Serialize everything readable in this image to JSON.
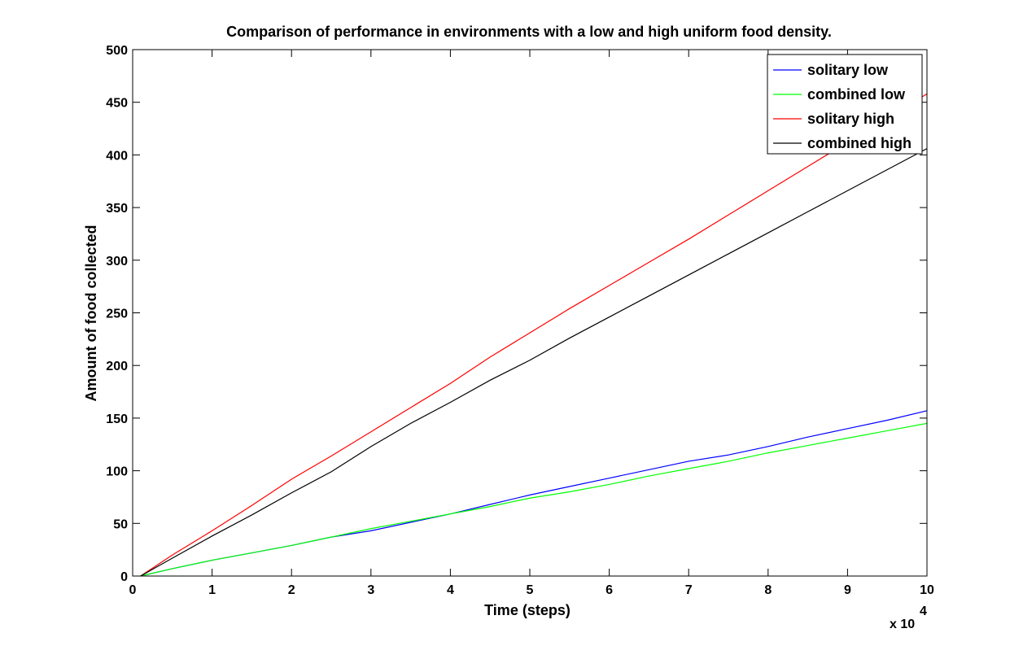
{
  "chart_data": {
    "type": "line",
    "title": "Comparison of performance in environments with a low and high uniform food density.",
    "xlabel": "Time (steps)",
    "ylabel": "Amount of food collected",
    "x_multiplier": "x 10",
    "x_multiplier_exponent": "4",
    "xlim": [
      0,
      10
    ],
    "ylim": [
      0,
      500
    ],
    "xticks": [
      0,
      1,
      2,
      3,
      4,
      5,
      6,
      7,
      8,
      9,
      10
    ],
    "yticks": [
      0,
      50,
      100,
      150,
      200,
      250,
      300,
      350,
      400,
      450,
      500
    ],
    "grid": false,
    "legend_position": "top-right",
    "x": [
      0.1,
      0.5,
      1,
      1.5,
      2,
      2.5,
      3,
      3.5,
      4,
      4.5,
      5,
      5.5,
      6,
      6.5,
      7,
      7.5,
      8,
      8.5,
      9,
      9.5,
      10
    ],
    "series": [
      {
        "name": "solitary low",
        "color": "#0000ff",
        "values": [
          0,
          7,
          15,
          22,
          29,
          37,
          43,
          51,
          59,
          68,
          77,
          85,
          93,
          101,
          109,
          115,
          123,
          132,
          140,
          148,
          157
        ]
      },
      {
        "name": "combined low",
        "color": "#00ff00",
        "values": [
          0,
          7,
          15,
          22,
          29,
          37,
          45,
          52,
          59,
          66,
          74,
          80,
          87,
          95,
          102,
          109,
          117,
          124,
          131,
          138,
          145
        ]
      },
      {
        "name": "solitary high",
        "color": "#ff0000",
        "values": [
          0,
          20,
          43,
          67,
          92,
          114,
          137,
          160,
          183,
          208,
          231,
          254,
          276,
          298,
          320,
          343,
          366,
          389,
          412,
          435,
          458
        ]
      },
      {
        "name": "combined high",
        "color": "#000000",
        "values": [
          0,
          17,
          38,
          58,
          79,
          99,
          123,
          145,
          165,
          186,
          205,
          226,
          246,
          266,
          286,
          306,
          326,
          346,
          366,
          386,
          406
        ]
      }
    ]
  }
}
